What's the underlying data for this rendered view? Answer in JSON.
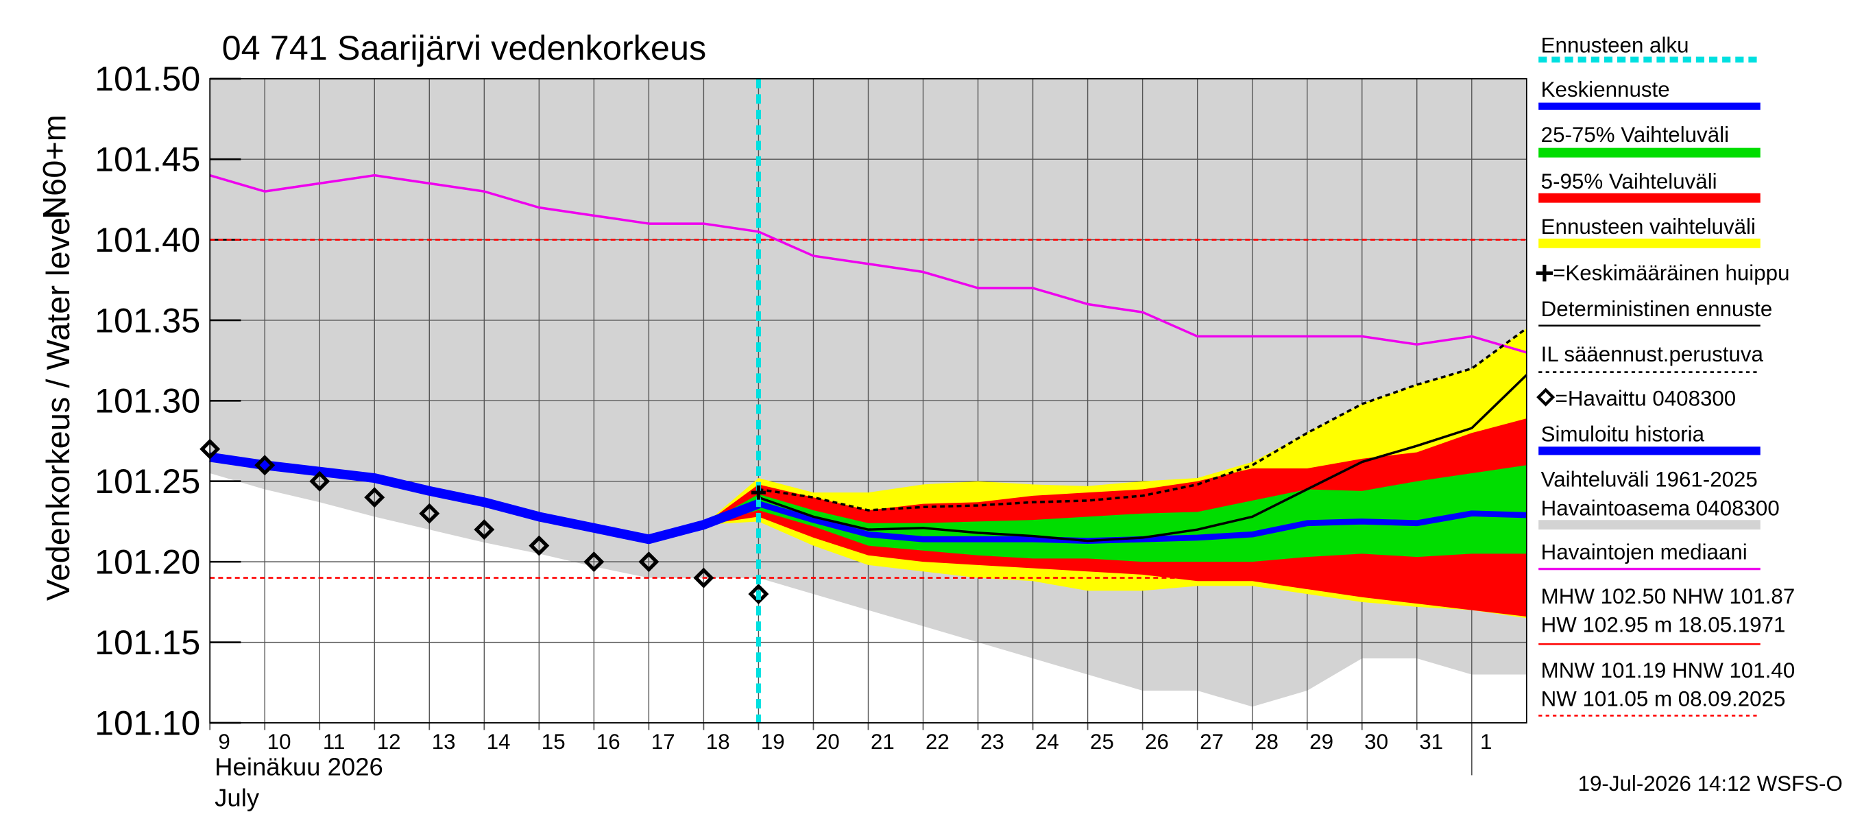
{
  "chart_data": {
    "type": "line",
    "title": "04 741 Saarijärvi vedenkorkeus",
    "y_label": "Vedenkorkeus / Water level",
    "y_unit_label": "N60+m",
    "x_label": [
      "Heinäkuu  2026",
      "July"
    ],
    "footer": "19-Jul-2026 14:12 WSFS-O",
    "xlim": [
      9,
      33
    ],
    "ylim": [
      101.1,
      101.5
    ],
    "xticks": [
      9,
      10,
      11,
      12,
      13,
      14,
      15,
      16,
      17,
      18,
      19,
      20,
      21,
      22,
      23,
      24,
      25,
      26,
      27,
      28,
      29,
      30,
      31,
      {
        "value": 32,
        "label": "1"
      }
    ],
    "yticks": [
      {
        "value": 101.1,
        "label": "101.10"
      },
      {
        "value": 101.15,
        "label": "101.15"
      },
      {
        "value": 101.2,
        "label": "101.20"
      },
      {
        "value": 101.25,
        "label": "101.25"
      },
      {
        "value": 101.3,
        "label": "101.30"
      },
      {
        "value": 101.35,
        "label": "101.35"
      },
      {
        "value": 101.4,
        "label": "101.40"
      },
      {
        "value": 101.45,
        "label": "101.45"
      },
      {
        "value": 101.5,
        "label": "101.50"
      }
    ],
    "grid": true,
    "forecast_start": {
      "name": "Ennusteen alku",
      "x": 19,
      "color": "#00e0e0"
    },
    "history_range": {
      "name": [
        "Vaihteluväli 1961-2025",
        "Havaintoasema 0408300"
      ],
      "color": "#d3d3d3",
      "x": [
        9,
        10,
        11,
        12,
        13,
        14,
        15,
        16,
        17,
        18,
        19,
        20,
        21,
        22,
        23,
        24,
        25,
        26,
        27,
        28,
        29,
        30,
        31,
        32,
        33
      ],
      "lower": [
        101.255,
        101.245,
        101.237,
        101.228,
        101.22,
        101.212,
        101.205,
        101.197,
        101.19,
        101.19,
        101.19,
        101.18,
        101.17,
        101.16,
        101.15,
        101.14,
        101.13,
        101.12,
        101.12,
        101.11,
        101.12,
        101.14,
        101.14,
        101.13,
        101.13
      ]
    },
    "bands": [
      {
        "name": "Ennusteen vaihteluväli",
        "color": "#ffff00",
        "x": [
          18,
          19,
          20,
          21,
          22,
          23,
          24,
          25,
          26,
          27,
          28,
          29,
          30,
          31,
          32,
          33
        ],
        "upper": [
          101.223,
          101.252,
          101.243,
          101.243,
          101.248,
          101.25,
          101.248,
          101.247,
          101.25,
          101.252,
          101.262,
          101.28,
          101.298,
          101.31,
          101.32,
          101.345
        ],
        "lower": [
          101.223,
          101.225,
          101.21,
          101.198,
          101.194,
          101.19,
          101.188,
          101.182,
          101.182,
          101.185,
          101.185,
          101.18,
          101.175,
          101.172,
          101.17,
          101.165
        ]
      },
      {
        "name": "5-95% Vaihteluväli",
        "color": "#ff0000",
        "x": [
          18,
          19,
          20,
          21,
          22,
          23,
          24,
          25,
          26,
          27,
          28,
          29,
          30,
          31,
          32,
          33
        ],
        "upper": [
          101.223,
          101.248,
          101.24,
          101.232,
          101.236,
          101.237,
          101.241,
          101.243,
          101.245,
          101.25,
          101.258,
          101.258,
          101.264,
          101.268,
          101.28,
          101.289
        ],
        "lower": [
          101.223,
          101.228,
          101.215,
          101.204,
          101.2,
          101.198,
          101.196,
          101.194,
          101.192,
          101.188,
          101.188,
          101.183,
          101.178,
          101.174,
          101.17,
          101.166
        ]
      },
      {
        "name": "25-75% Vaihteluväli",
        "color": "#00dd00",
        "x": [
          18,
          19,
          20,
          21,
          22,
          23,
          24,
          25,
          26,
          27,
          28,
          29,
          30,
          31,
          32,
          33
        ],
        "upper": [
          101.223,
          101.242,
          101.232,
          101.224,
          101.224,
          101.225,
          101.226,
          101.228,
          101.23,
          101.231,
          101.238,
          101.245,
          101.244,
          101.25,
          101.255,
          101.26
        ],
        "lower": [
          101.223,
          101.232,
          101.222,
          101.21,
          101.207,
          101.204,
          101.202,
          101.202,
          101.2,
          101.2,
          101.2,
          101.203,
          101.205,
          101.203,
          101.205,
          101.205
        ]
      }
    ],
    "series": [
      {
        "name": "Havaintojen mediaani",
        "color": "#ee00ee",
        "width": 2,
        "x": [
          9,
          10,
          11,
          12,
          13,
          14,
          15,
          16,
          17,
          18,
          19,
          20,
          21,
          22,
          23,
          24,
          25,
          26,
          27,
          28,
          29,
          30,
          31,
          32,
          33
        ],
        "values": [
          101.44,
          101.43,
          101.435,
          101.44,
          101.435,
          101.43,
          101.42,
          101.415,
          101.41,
          101.41,
          101.405,
          101.39,
          101.385,
          101.38,
          101.37,
          101.37,
          101.36,
          101.355,
          101.34,
          101.34,
          101.34,
          101.34,
          101.335,
          101.34,
          101.33
        ]
      },
      {
        "name": "Simuloitu historia",
        "color": "#0000ff",
        "width": 8,
        "x": [
          9,
          10,
          11,
          12,
          13,
          14,
          15,
          16,
          17,
          18,
          19
        ],
        "values": [
          101.265,
          101.26,
          101.256,
          101.252,
          101.244,
          101.237,
          101.228,
          101.221,
          101.214,
          101.223,
          101.236
        ]
      },
      {
        "name": "Keskiennuste",
        "color": "#0000ff",
        "width": 5,
        "x": [
          19,
          20,
          21,
          22,
          23,
          24,
          25,
          26,
          27,
          28,
          29,
          30,
          31,
          32,
          33
        ],
        "values": [
          101.236,
          101.226,
          101.217,
          101.214,
          101.214,
          101.214,
          101.213,
          101.214,
          101.215,
          101.217,
          101.224,
          101.225,
          101.224,
          101.23,
          101.229
        ]
      },
      {
        "name": "Deterministinen ennuste",
        "color": "#000000",
        "width": 2,
        "x": [
          19,
          20,
          21,
          22,
          23,
          24,
          25,
          26,
          27,
          28,
          29,
          30,
          31,
          32,
          33
        ],
        "values": [
          101.24,
          101.228,
          101.22,
          101.221,
          101.218,
          101.216,
          101.213,
          101.215,
          101.22,
          101.228,
          101.245,
          101.262,
          101.272,
          101.283,
          101.316
        ]
      },
      {
        "name": "IL sääennust.perustuva",
        "color": "#000000",
        "width": 2,
        "dash": true,
        "x": [
          19,
          20,
          21,
          22,
          23,
          24,
          25,
          26,
          27,
          28,
          29,
          30,
          31,
          32,
          33
        ],
        "values": [
          101.245,
          101.24,
          101.232,
          101.234,
          101.235,
          101.237,
          101.238,
          101.241,
          101.248,
          101.26,
          101.28,
          101.298,
          101.31,
          101.32,
          101.345
        ]
      },
      {
        "name": "=Havaittu 0408300",
        "color": "#000000",
        "marker": "diamond",
        "x": [
          9,
          10,
          11,
          12,
          13,
          14,
          15,
          16,
          17,
          18,
          19
        ],
        "values": [
          101.27,
          101.26,
          101.25,
          101.24,
          101.23,
          101.22,
          101.21,
          101.2,
          101.2,
          101.19,
          101.18
        ]
      }
    ],
    "mean_peak": {
      "name": "=Keskimääräinen huippu",
      "x": 19,
      "y": 101.243
    },
    "high_water": {
      "name": [
        "MHW 102.50 NHW 101.87",
        "HW 102.95 m 18.05.1971"
      ],
      "color": "#ff0000"
    },
    "low_water": {
      "name": [
        "MNW 101.19 HNW 101.40",
        "NW 101.05 m 08.09.2025"
      ],
      "color": "#ff0000",
      "lines": [
        101.4,
        101.19
      ]
    }
  }
}
